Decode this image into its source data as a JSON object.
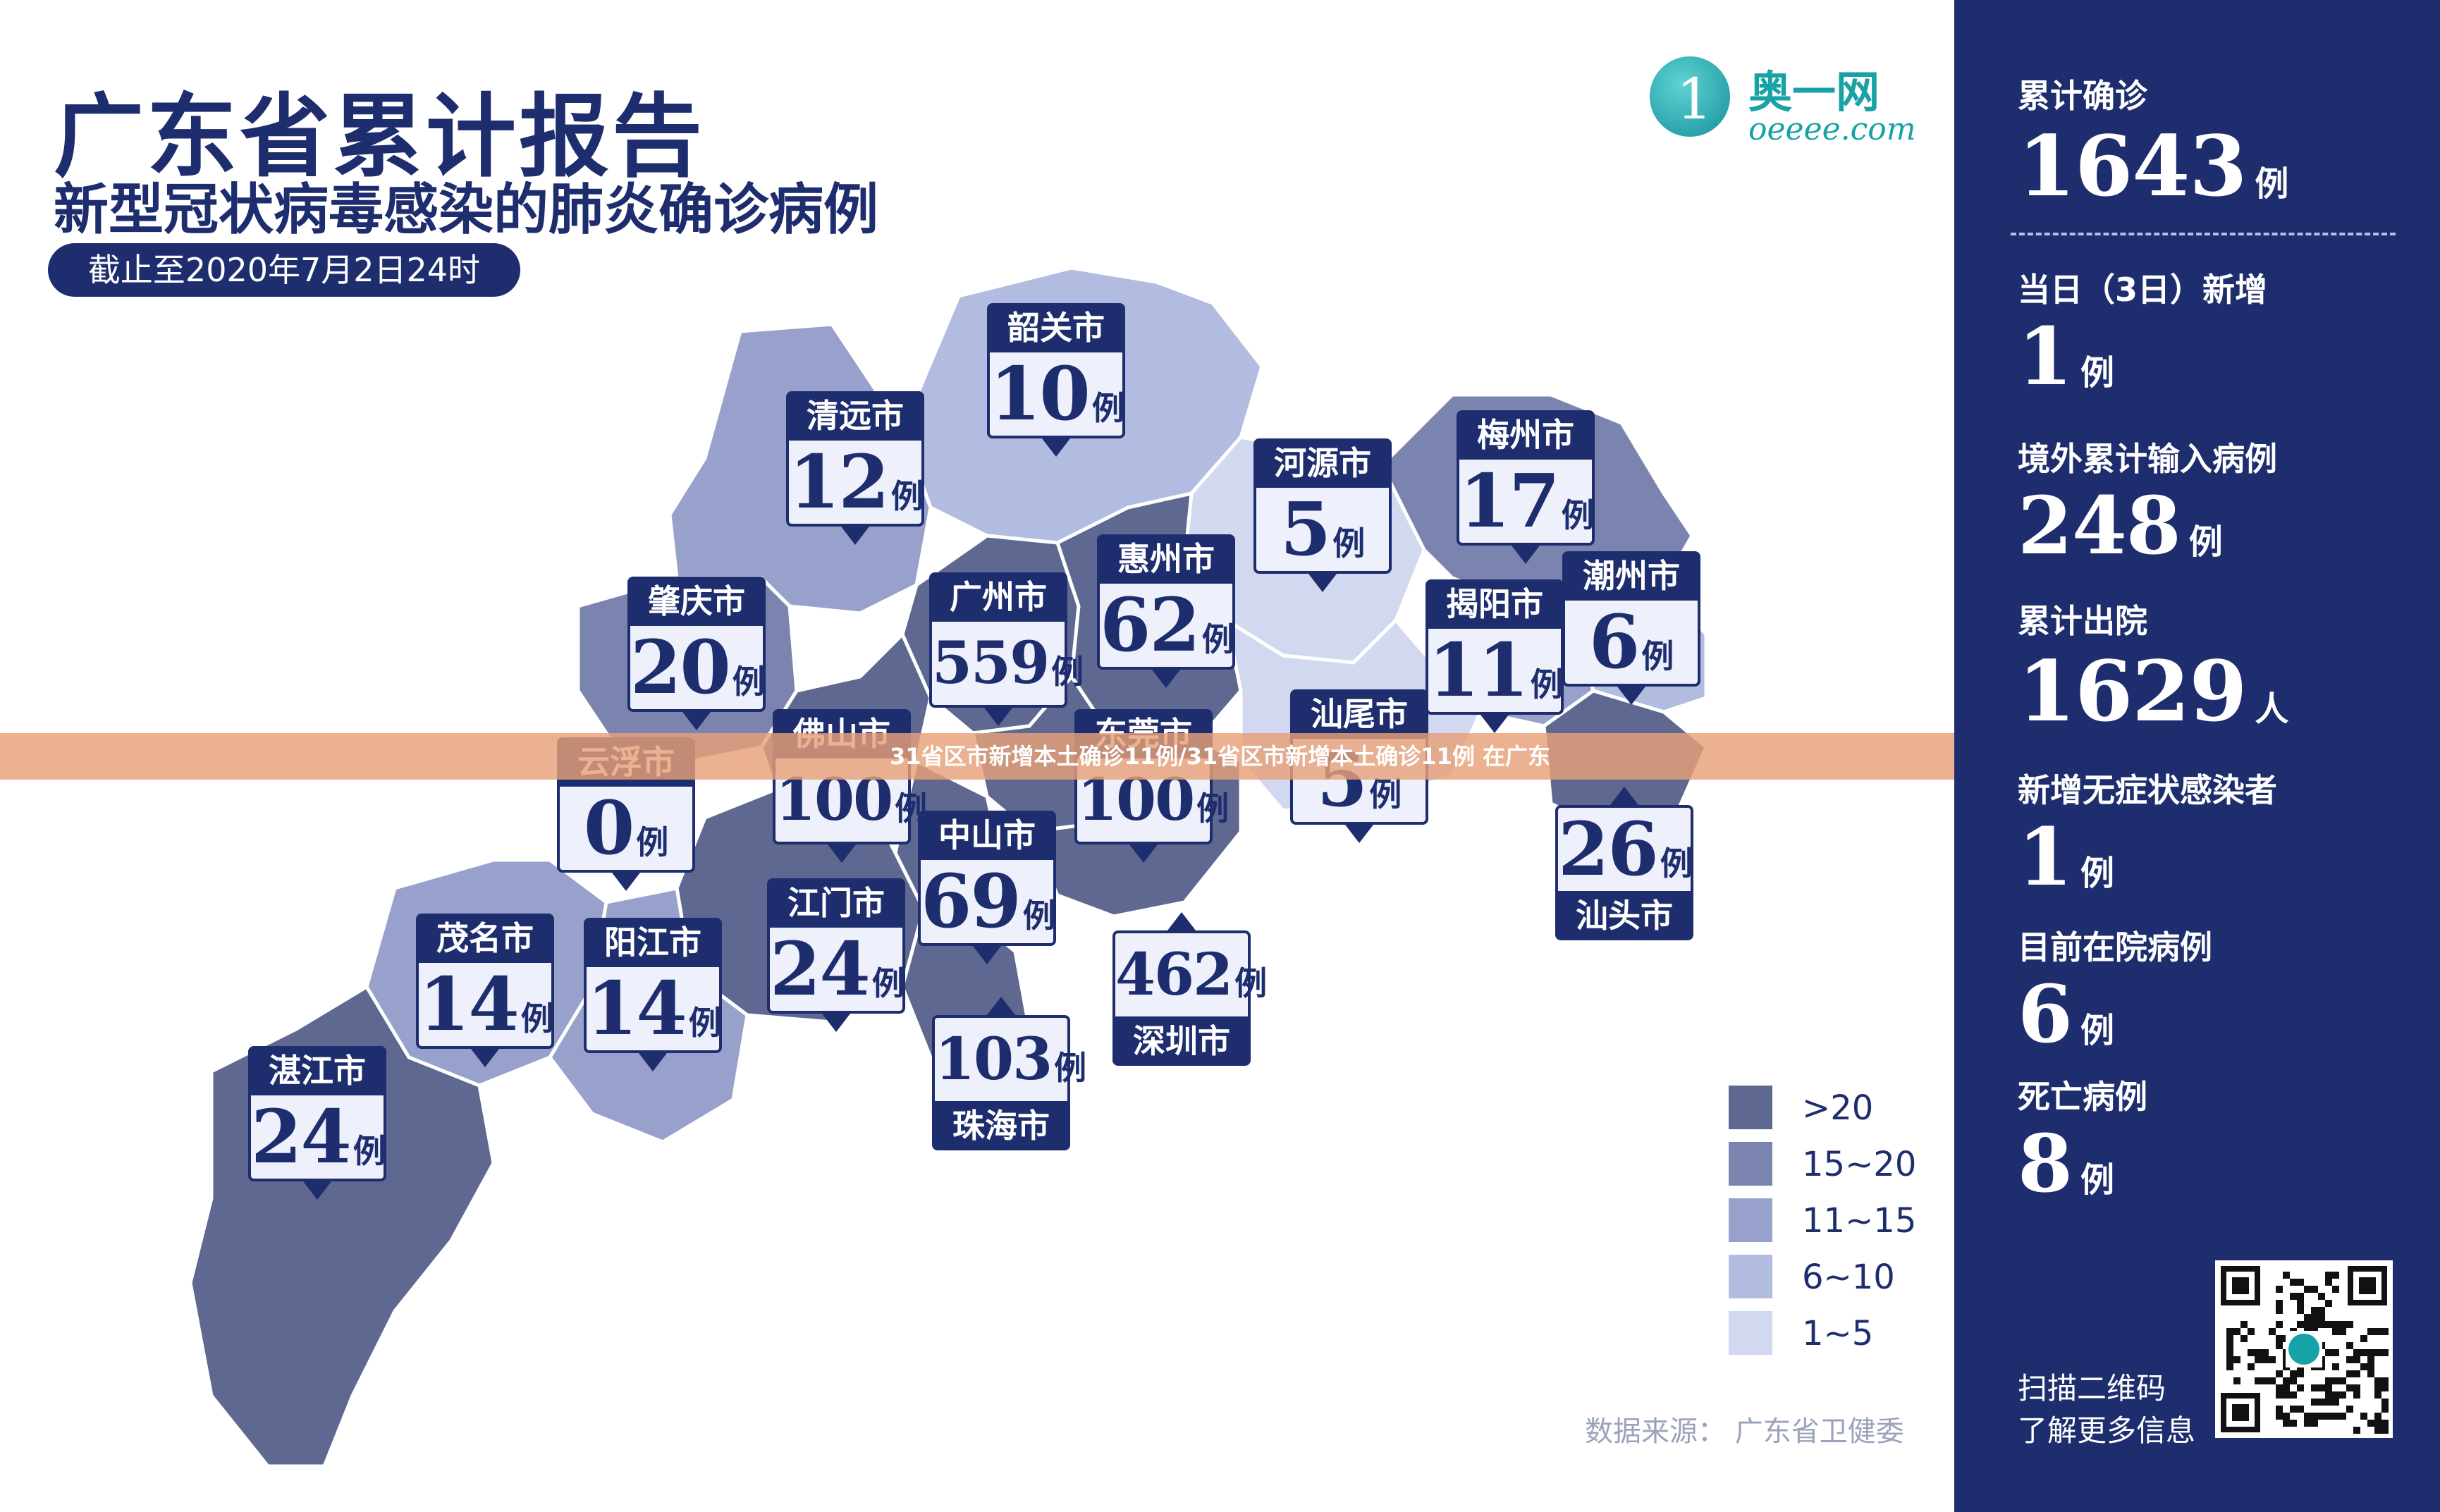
{
  "header": {
    "title": "广东省累计报告",
    "subtitle": "新型冠状病毒感染的肺炎确诊病例",
    "date": "截止至2020年7月2日24时"
  },
  "logo": {
    "name_cn": "奥一网",
    "name_en": "oeeee.com",
    "glyph": "1"
  },
  "banner": "31省区市新增本土确诊11例/31省区市新增本土确诊11例 在广东",
  "colors": {
    "dark_navy": "#1e2d6e",
    "tier_gt20": "#5e6890",
    "tier_15_20": "#7a84ae",
    "tier_11_15": "#97a1cc",
    "tier_6_10": "#b2bbe0",
    "tier_1_5": "#d2d8ef",
    "zero": "#ffffff"
  },
  "cities": [
    {
      "name": "韶关市",
      "count": "10",
      "unit": "例"
    },
    {
      "name": "清远市",
      "count": "12",
      "unit": "例"
    },
    {
      "name": "河源市",
      "count": "5",
      "unit": "例"
    },
    {
      "name": "梅州市",
      "count": "17",
      "unit": "例"
    },
    {
      "name": "肇庆市",
      "count": "20",
      "unit": "例"
    },
    {
      "name": "广州市",
      "count": "559",
      "unit": "例"
    },
    {
      "name": "惠州市",
      "count": "62",
      "unit": "例"
    },
    {
      "name": "揭阳市",
      "count": "11",
      "unit": "例"
    },
    {
      "name": "潮州市",
      "count": "6",
      "unit": "例"
    },
    {
      "name": "云浮市",
      "count": "0",
      "unit": "例"
    },
    {
      "name": "佛山市",
      "count": "100",
      "unit": "例"
    },
    {
      "name": "东莞市",
      "count": "100",
      "unit": "例"
    },
    {
      "name": "汕尾市",
      "count": "5",
      "unit": "例"
    },
    {
      "name": "汕头市",
      "count": "26",
      "unit": "例"
    },
    {
      "name": "中山市",
      "count": "69",
      "unit": "例"
    },
    {
      "name": "江门市",
      "count": "24",
      "unit": "例"
    },
    {
      "name": "茂名市",
      "count": "14",
      "unit": "例"
    },
    {
      "name": "阳江市",
      "count": "14",
      "unit": "例"
    },
    {
      "name": "深圳市",
      "count": "462",
      "unit": "例"
    },
    {
      "name": "珠海市",
      "count": "103",
      "unit": "例"
    },
    {
      "name": "湛江市",
      "count": "24",
      "unit": "例"
    }
  ],
  "legend": [
    {
      "label": ">20",
      "color": "#5e6890"
    },
    {
      "label": "15~20",
      "color": "#7a84ae"
    },
    {
      "label": "11~15",
      "color": "#97a1cc"
    },
    {
      "label": "6~10",
      "color": "#b2bbe0"
    },
    {
      "label": "1~5",
      "color": "#d2d8ef"
    }
  ],
  "source": "数据来源：  广东省卫健委",
  "stats": [
    {
      "label": "累计确诊",
      "value": "1643",
      "unit": "例"
    },
    {
      "label": "当日（3日）新增",
      "value": "1",
      "unit": "例"
    },
    {
      "label": "境外累计输入病例",
      "value": "248",
      "unit": "例"
    },
    {
      "label": "累计出院",
      "value": "1629",
      "unit": "人"
    },
    {
      "label": "新增无症状感染者",
      "value": "1",
      "unit": "例"
    },
    {
      "label": "目前在院病例",
      "value": "6",
      "unit": "例"
    },
    {
      "label": "死亡病例",
      "value": "8",
      "unit": "例"
    }
  ],
  "qr": {
    "hint_line1": "扫描二维码",
    "hint_line2": "了解更多信息"
  }
}
